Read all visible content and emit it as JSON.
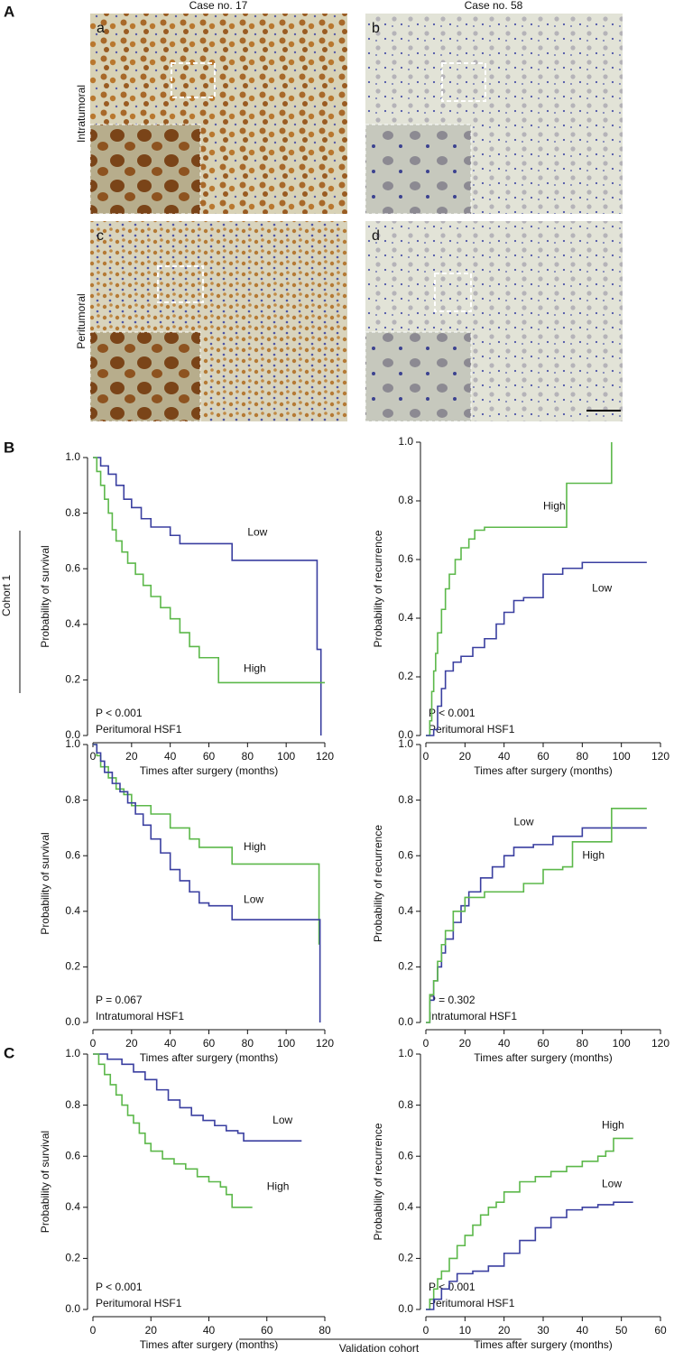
{
  "figure": {
    "panel_labels": [
      "A",
      "B",
      "C"
    ],
    "image_panel": {
      "columns": [
        "Case no. 17",
        "Case no. 58"
      ],
      "rows": [
        "Intratumoral",
        "Peritumoral"
      ],
      "subpanels": [
        "a",
        "b",
        "c",
        "d"
      ]
    },
    "cohort_labels": [
      "Cohort 1",
      "Validation cohort"
    ]
  },
  "chart_data": [
    {
      "type": "line",
      "step": true,
      "xlabel": "Times after surgery (months)",
      "ylabel": "Probability of survival",
      "annotations": [
        "P < 0.001",
        "Peritumoral HSF1"
      ],
      "xlim": [
        0,
        120
      ],
      "xticks": [
        0,
        20,
        40,
        60,
        80,
        100,
        120
      ],
      "ylim": [
        0,
        1
      ],
      "yticks": [
        {
          "value": 0,
          "label": "0.0"
        },
        0.2,
        0.4,
        0.6,
        0.8,
        {
          "value": 1,
          "label": "1.0"
        }
      ],
      "series": [
        {
          "name": "Low",
          "color": "#3a3fa0",
          "x": [
            0,
            4,
            8,
            12,
            16,
            20,
            25,
            30,
            40,
            45,
            55,
            72,
            115,
            116,
            118
          ],
          "values": [
            1,
            0.97,
            0.94,
            0.9,
            0.85,
            0.82,
            0.78,
            0.75,
            0.72,
            0.69,
            0.69,
            0.63,
            0.63,
            0.31,
            0
          ]
        },
        {
          "name": "High",
          "color": "#5cb84a",
          "x": [
            0,
            2,
            4,
            6,
            8,
            10,
            12,
            15,
            18,
            22,
            26,
            30,
            35,
            40,
            45,
            50,
            55,
            65,
            120
          ],
          "values": [
            1,
            0.95,
            0.9,
            0.85,
            0.8,
            0.74,
            0.7,
            0.66,
            0.62,
            0.58,
            0.54,
            0.5,
            0.46,
            0.42,
            0.37,
            0.32,
            0.28,
            0.19,
            0.19
          ]
        }
      ]
    },
    {
      "type": "line",
      "step": true,
      "xlabel": "Times after surgery (months)",
      "ylabel": "Probability of recurrence",
      "annotations": [
        "P < 0.001",
        "Peritumoral HSF1"
      ],
      "xlim": [
        0,
        120
      ],
      "xticks": [
        0,
        20,
        40,
        60,
        80,
        100,
        120
      ],
      "ylim": [
        0,
        1
      ],
      "yticks": [
        {
          "value": 0,
          "label": "0.0"
        },
        0.2,
        0.4,
        0.6,
        0.8,
        {
          "value": 1,
          "label": "1.0"
        }
      ],
      "series": [
        {
          "name": "High",
          "color": "#5cb84a",
          "x": [
            0,
            2,
            3,
            4,
            5,
            6,
            8,
            10,
            12,
            15,
            18,
            22,
            25,
            30,
            40,
            50,
            72,
            95
          ],
          "values": [
            0,
            0.05,
            0.15,
            0.22,
            0.28,
            0.35,
            0.43,
            0.5,
            0.55,
            0.6,
            0.64,
            0.67,
            0.7,
            0.71,
            0.71,
            0.71,
            0.86,
            1
          ]
        },
        {
          "name": "Low",
          "color": "#3a3fa0",
          "x": [
            0,
            4,
            6,
            8,
            10,
            14,
            18,
            24,
            30,
            36,
            40,
            45,
            50,
            60,
            70,
            80,
            113
          ],
          "values": [
            0,
            0.02,
            0.1,
            0.16,
            0.22,
            0.25,
            0.27,
            0.3,
            0.33,
            0.38,
            0.42,
            0.46,
            0.47,
            0.55,
            0.57,
            0.59,
            0.59
          ]
        }
      ]
    },
    {
      "type": "line",
      "step": true,
      "xlabel": "Times after surgery (months)",
      "ylabel": "Probability of survival",
      "annotations": [
        "P = 0.067",
        "Intratumoral HSF1"
      ],
      "xlim": [
        0,
        120
      ],
      "xticks": [
        0,
        20,
        40,
        60,
        80,
        100,
        120
      ],
      "ylim": [
        0,
        1
      ],
      "yticks": [
        {
          "value": 0,
          "label": "0.0"
        },
        0.2,
        0.4,
        0.6,
        0.8,
        {
          "value": 1,
          "label": "1.0"
        }
      ],
      "series": [
        {
          "name": "High",
          "color": "#5cb84a",
          "x": [
            0,
            2,
            4,
            8,
            12,
            16,
            20,
            30,
            40,
            50,
            55,
            72,
            115,
            117
          ],
          "values": [
            1,
            0.96,
            0.92,
            0.88,
            0.84,
            0.82,
            0.78,
            0.75,
            0.7,
            0.66,
            0.63,
            0.57,
            0.57,
            0.28
          ]
        },
        {
          "name": "Low",
          "color": "#3a3fa0",
          "x": [
            0,
            2,
            4,
            6,
            10,
            14,
            18,
            22,
            26,
            30,
            35,
            40,
            45,
            50,
            55,
            60,
            72,
            116,
            117.5
          ],
          "values": [
            1,
            0.97,
            0.94,
            0.9,
            0.86,
            0.83,
            0.79,
            0.75,
            0.71,
            0.66,
            0.61,
            0.55,
            0.51,
            0.47,
            0.43,
            0.42,
            0.37,
            0.37,
            0
          ]
        }
      ]
    },
    {
      "type": "line",
      "step": true,
      "xlabel": "Times after surgery (months)",
      "ylabel": "Probability of recurrence",
      "annotations": [
        "P = 0.302",
        "Intratumoral HSF1"
      ],
      "xlim": [
        0,
        120
      ],
      "xticks": [
        0,
        20,
        40,
        60,
        80,
        100,
        120
      ],
      "ylim": [
        0,
        1
      ],
      "yticks": [
        {
          "value": 0,
          "label": "0.0"
        },
        0.2,
        0.4,
        0.6,
        0.8,
        {
          "value": 1,
          "label": "1.0"
        }
      ],
      "series": [
        {
          "name": "Low",
          "color": "#3a3fa0",
          "x": [
            0,
            2,
            4,
            6,
            8,
            10,
            14,
            18,
            22,
            28,
            34,
            40,
            45,
            55,
            65,
            80,
            113
          ],
          "values": [
            0,
            0.08,
            0.15,
            0.2,
            0.25,
            0.3,
            0.36,
            0.42,
            0.47,
            0.52,
            0.56,
            0.6,
            0.63,
            0.64,
            0.67,
            0.7,
            0.7
          ]
        },
        {
          "name": "High",
          "color": "#5cb84a",
          "x": [
            0,
            2,
            4,
            6,
            8,
            10,
            14,
            20,
            30,
            40,
            50,
            60,
            70,
            75,
            95,
            113
          ],
          "values": [
            0,
            0.1,
            0.15,
            0.22,
            0.28,
            0.33,
            0.4,
            0.45,
            0.47,
            0.47,
            0.5,
            0.55,
            0.56,
            0.65,
            0.77,
            0.77
          ]
        }
      ]
    },
    {
      "type": "line",
      "step": true,
      "xlabel": "Times after surgery (months)",
      "ylabel": "Probability of survival",
      "annotations": [
        "P < 0.001",
        "Peritumoral HSF1"
      ],
      "xlim": [
        0,
        80
      ],
      "xticks": [
        0,
        20,
        40,
        60,
        80
      ],
      "ylim": [
        0,
        1
      ],
      "yticks": [
        {
          "value": 0,
          "label": "0.0"
        },
        0.2,
        0.4,
        0.6,
        0.8,
        {
          "value": 1,
          "label": "1.0"
        }
      ],
      "series": [
        {
          "name": "Low",
          "color": "#3a3fa0",
          "x": [
            0,
            5,
            10,
            14,
            18,
            22,
            26,
            30,
            34,
            38,
            42,
            46,
            50,
            52,
            72
          ],
          "values": [
            1,
            0.98,
            0.96,
            0.93,
            0.9,
            0.86,
            0.82,
            0.79,
            0.76,
            0.74,
            0.72,
            0.7,
            0.69,
            0.66,
            0.66
          ]
        },
        {
          "name": "High",
          "color": "#5cb84a",
          "x": [
            0,
            2,
            4,
            6,
            8,
            10,
            12,
            14,
            16,
            18,
            20,
            24,
            28,
            32,
            36,
            40,
            44,
            46,
            48,
            55
          ],
          "values": [
            1,
            0.96,
            0.92,
            0.88,
            0.84,
            0.8,
            0.76,
            0.73,
            0.69,
            0.65,
            0.62,
            0.59,
            0.57,
            0.55,
            0.52,
            0.5,
            0.48,
            0.45,
            0.4,
            0.4
          ]
        }
      ]
    },
    {
      "type": "line",
      "step": true,
      "xlabel": "Times after surgery (months)",
      "ylabel": "Probability of recurrence",
      "annotations": [
        "P < 0.001",
        "Peritumoral HSF1"
      ],
      "xlim": [
        0,
        60
      ],
      "xticks": [
        0,
        10,
        20,
        30,
        40,
        50,
        60
      ],
      "ylim": [
        0,
        1
      ],
      "yticks": [
        {
          "value": 0,
          "label": "0.0"
        },
        0.2,
        0.4,
        0.6,
        0.8,
        {
          "value": 1,
          "label": "1.0"
        }
      ],
      "series": [
        {
          "name": "High",
          "color": "#5cb84a",
          "x": [
            0,
            1,
            2,
            3,
            4,
            6,
            8,
            10,
            12,
            14,
            16,
            18,
            20,
            24,
            28,
            32,
            36,
            40,
            44,
            46,
            48,
            53
          ],
          "values": [
            0,
            0.04,
            0.08,
            0.12,
            0.15,
            0.2,
            0.25,
            0.29,
            0.33,
            0.37,
            0.4,
            0.42,
            0.46,
            0.5,
            0.52,
            0.54,
            0.56,
            0.58,
            0.6,
            0.62,
            0.67,
            0.67
          ]
        },
        {
          "name": "Low",
          "color": "#3a3fa0",
          "x": [
            0,
            2,
            4,
            6,
            8,
            12,
            16,
            20,
            24,
            28,
            32,
            36,
            40,
            44,
            48,
            53
          ],
          "values": [
            0,
            0.04,
            0.08,
            0.11,
            0.14,
            0.15,
            0.17,
            0.22,
            0.27,
            0.32,
            0.36,
            0.39,
            0.4,
            0.41,
            0.42,
            0.42
          ]
        }
      ]
    }
  ]
}
